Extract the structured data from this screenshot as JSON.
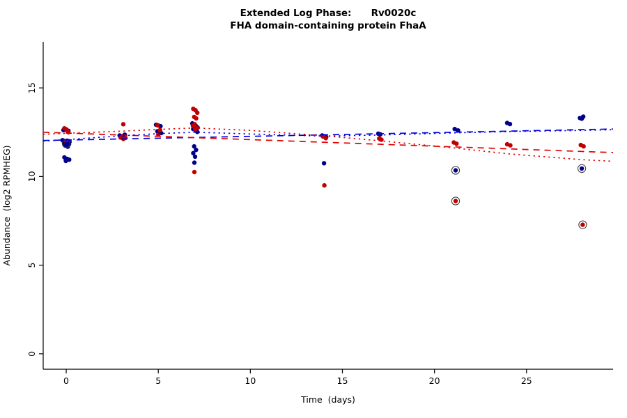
{
  "chart_data": {
    "type": "scatter",
    "title": "Extended Log Phase:      Rv0020c",
    "subtitle": "FHA domain-containing protein FhaA",
    "xlabel": "Time  (days)",
    "ylabel": "Abundance  (log2 RPMHEG)",
    "xlim": [
      -1.25,
      29.7
    ],
    "ylim": [
      -0.87,
      17.6
    ],
    "xticks": [
      0,
      5,
      10,
      15,
      20,
      25
    ],
    "yticks": [
      0,
      5,
      10,
      15
    ],
    "grid": false,
    "legend": "none",
    "series": [
      {
        "name": "blue",
        "color": "#00008B",
        "points": [
          [
            -0.15,
            12.62
          ],
          [
            0.0,
            12.66
          ],
          [
            0.12,
            12.58
          ],
          [
            -0.2,
            12.05
          ],
          [
            -0.08,
            12.0
          ],
          [
            0.05,
            12.02
          ],
          [
            0.18,
            11.95
          ],
          [
            -0.12,
            11.9
          ],
          [
            0.02,
            11.88
          ],
          [
            0.15,
            11.82
          ],
          [
            -0.05,
            11.75
          ],
          [
            0.08,
            11.68
          ],
          [
            -0.1,
            11.08
          ],
          [
            0.04,
            11.0
          ],
          [
            0.16,
            10.95
          ],
          [
            -0.02,
            10.88
          ],
          [
            2.9,
            12.32
          ],
          [
            3.05,
            12.28
          ],
          [
            3.18,
            12.36
          ],
          [
            4.88,
            12.92
          ],
          [
            5.0,
            12.88
          ],
          [
            5.12,
            12.84
          ],
          [
            4.95,
            12.55
          ],
          [
            5.06,
            12.5
          ],
          [
            5.16,
            12.45
          ],
          [
            5.02,
            12.4
          ],
          [
            6.85,
            13.0
          ],
          [
            6.95,
            12.9
          ],
          [
            7.06,
            12.84
          ],
          [
            7.14,
            12.76
          ],
          [
            6.9,
            12.68
          ],
          [
            7.02,
            12.6
          ],
          [
            7.12,
            12.52
          ],
          [
            6.95,
            11.7
          ],
          [
            7.05,
            11.5
          ],
          [
            6.9,
            11.32
          ],
          [
            7.0,
            11.12
          ],
          [
            6.96,
            10.78
          ],
          [
            13.9,
            12.32
          ],
          [
            14.02,
            12.27
          ],
          [
            14.12,
            12.22
          ],
          [
            14.0,
            10.75
          ],
          [
            16.95,
            12.42
          ],
          [
            17.06,
            12.38
          ],
          [
            21.1,
            12.68
          ],
          [
            21.28,
            12.6
          ],
          [
            23.95,
            13.02
          ],
          [
            24.1,
            12.96
          ],
          [
            27.9,
            13.3
          ],
          [
            28.08,
            13.38
          ],
          [
            28.0,
            13.26
          ]
        ]
      },
      {
        "name": "red",
        "color": "#c00000",
        "points": [
          [
            -0.1,
            12.72
          ],
          [
            0.05,
            12.6
          ],
          [
            0.12,
            12.5
          ],
          [
            0.0,
            11.95
          ],
          [
            3.1,
            12.95
          ],
          [
            2.95,
            12.2
          ],
          [
            3.1,
            12.12
          ],
          [
            3.22,
            12.18
          ],
          [
            4.95,
            12.9
          ],
          [
            5.1,
            12.62
          ],
          [
            5.0,
            12.36
          ],
          [
            6.9,
            13.82
          ],
          [
            7.02,
            13.74
          ],
          [
            7.12,
            13.6
          ],
          [
            6.95,
            13.36
          ],
          [
            7.06,
            13.28
          ],
          [
            6.98,
            12.95
          ],
          [
            6.88,
            12.86
          ],
          [
            7.1,
            12.74
          ],
          [
            7.0,
            12.66
          ],
          [
            6.96,
            10.25
          ],
          [
            13.95,
            12.25
          ],
          [
            14.1,
            12.16
          ],
          [
            14.02,
            9.5
          ],
          [
            17.0,
            12.15
          ],
          [
            17.12,
            12.08
          ],
          [
            21.05,
            11.92
          ],
          [
            21.2,
            11.85
          ],
          [
            23.95,
            11.82
          ],
          [
            24.12,
            11.76
          ],
          [
            27.95,
            11.78
          ],
          [
            28.1,
            11.7
          ]
        ]
      }
    ],
    "flagged_outliers": [
      {
        "x": 0.0,
        "y": 11.85,
        "series": "blue"
      },
      {
        "x": 21.15,
        "y": 10.35,
        "series": "blue"
      },
      {
        "x": 21.15,
        "y": 8.62,
        "series": "red"
      },
      {
        "x": 28.0,
        "y": 10.45,
        "series": "blue"
      },
      {
        "x": 28.05,
        "y": 7.28,
        "series": "red"
      }
    ],
    "trend_lines": [
      {
        "name": "blue-linear-fit",
        "color": "#0000e0",
        "dash": "dashed",
        "points": [
          [
            -1.25,
            12.03
          ],
          [
            29.7,
            12.68
          ]
        ]
      },
      {
        "name": "red-linear-fit",
        "color": "#e00000",
        "dash": "dashed",
        "points": [
          [
            -1.25,
            12.5
          ],
          [
            29.7,
            11.35
          ]
        ]
      },
      {
        "name": "blue-smooth-fit",
        "color": "#0000e0",
        "dash": "dotted",
        "points": [
          [
            -1.25,
            12.0
          ],
          [
            0,
            12.08
          ],
          [
            3,
            12.3
          ],
          [
            5,
            12.42
          ],
          [
            7,
            12.5
          ],
          [
            10,
            12.4
          ],
          [
            14,
            12.28
          ],
          [
            17,
            12.34
          ],
          [
            21,
            12.46
          ],
          [
            24,
            12.54
          ],
          [
            28,
            12.6
          ],
          [
            29.7,
            12.64
          ]
        ]
      },
      {
        "name": "red-smooth-fit",
        "color": "#e00000",
        "dash": "dotted",
        "points": [
          [
            -1.25,
            12.38
          ],
          [
            0,
            12.44
          ],
          [
            3,
            12.56
          ],
          [
            5,
            12.66
          ],
          [
            7,
            12.74
          ],
          [
            10,
            12.6
          ],
          [
            14,
            12.3
          ],
          [
            17,
            12.02
          ],
          [
            21,
            11.62
          ],
          [
            24,
            11.28
          ],
          [
            28,
            10.95
          ],
          [
            29.7,
            10.86
          ]
        ]
      }
    ]
  }
}
